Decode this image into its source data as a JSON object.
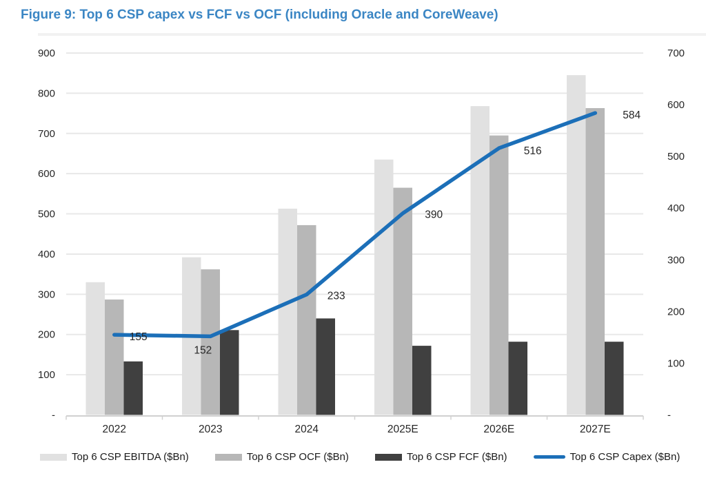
{
  "figure_title": "Figure 9: Top 6 CSP capex vs FCF vs OCF (including Oracle and CoreWeave)",
  "chart_data": {
    "type": "combo-bar-line",
    "categories": [
      "2022",
      "2023",
      "2024",
      "2025E",
      "2026E",
      "2027E"
    ],
    "bar_series": [
      {
        "key": "ebitda",
        "name": "Top 6 CSP EBITDA ($Bn)",
        "axis": "left",
        "color": "#e1e1e1",
        "values": [
          330,
          392,
          513,
          635,
          768,
          845
        ]
      },
      {
        "key": "ocf",
        "name": "Top 6 CSP OCF ($Bn)",
        "axis": "left",
        "color": "#b7b7b7",
        "values": [
          287,
          362,
          472,
          565,
          695,
          763
        ]
      },
      {
        "key": "fcf",
        "name": "Top 6 CSP FCF ($Bn)",
        "axis": "left",
        "color": "#404040",
        "values": [
          133,
          211,
          240,
          172,
          182,
          182
        ]
      }
    ],
    "line_series": [
      {
        "key": "capex",
        "name": "Top 6 CSP Capex ($Bn)",
        "axis": "right",
        "color": "#1c6fb8",
        "values": [
          155,
          152,
          233,
          390,
          516,
          584
        ],
        "labels": [
          "155",
          "152",
          "233",
          "390",
          "516",
          "584"
        ]
      }
    ],
    "left_axis": {
      "min": 0,
      "max": 900,
      "step": 100,
      "tick_labels": [
        "-",
        "100",
        "200",
        "300",
        "400",
        "500",
        "600",
        "700",
        "800",
        "900"
      ]
    },
    "right_axis": {
      "min": 0,
      "max": 700,
      "step": 100,
      "tick_labels": [
        "-",
        "100",
        "200",
        "300",
        "400",
        "500",
        "600",
        "700"
      ]
    },
    "grid": true,
    "legend_position": "bottom"
  },
  "colors": {
    "title": "#3b86c4",
    "gridline": "#e8e8e8",
    "axis_line": "#d0d0d0",
    "text": "#262626"
  }
}
